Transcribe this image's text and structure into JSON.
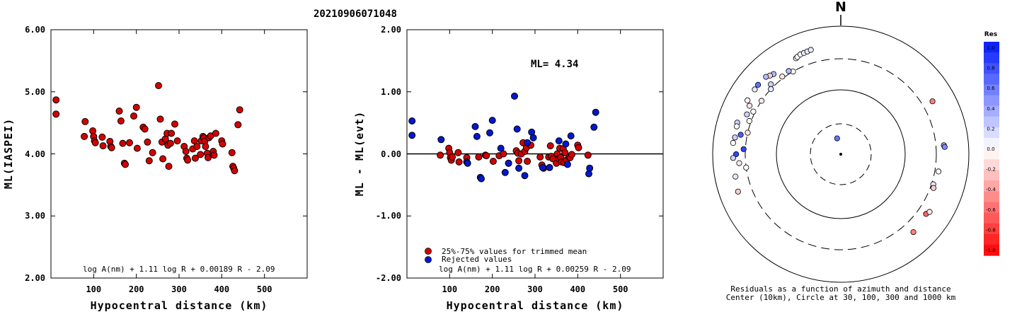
{
  "title": "20210906071048",
  "chart_data": [
    {
      "type": "scatter",
      "ylabel": "ML(IASPEI)",
      "xlabel": "Hypocentral distance (km)",
      "xlim": [
        0,
        600
      ],
      "ylim": [
        2.0,
        6.0
      ],
      "xticks": [
        "100",
        "200",
        "300",
        "400",
        "500"
      ],
      "yticks": [
        "2.00",
        "3.00",
        "4.00",
        "5.00",
        "6.00"
      ],
      "formula": "log A(nm) + 1.11 log R + 0.00189 R - 2.09",
      "points": [
        [
          12,
          4.87
        ],
        [
          12,
          4.64
        ],
        [
          80,
          4.52
        ],
        [
          78,
          4.28
        ],
        [
          98,
          4.37
        ],
        [
          100,
          4.28
        ],
        [
          102,
          4.21
        ],
        [
          104,
          4.18
        ],
        [
          120,
          4.27
        ],
        [
          122,
          4.13
        ],
        [
          138,
          4.2
        ],
        [
          140,
          4.12
        ],
        [
          142,
          4.1
        ],
        [
          160,
          4.69
        ],
        [
          164,
          4.53
        ],
        [
          168,
          4.17
        ],
        [
          172,
          3.85
        ],
        [
          174,
          3.83
        ],
        [
          184,
          4.18
        ],
        [
          194,
          4.61
        ],
        [
          200,
          4.75
        ],
        [
          202,
          4.09
        ],
        [
          216,
          4.43
        ],
        [
          220,
          4.4
        ],
        [
          226,
          4.19
        ],
        [
          230,
          3.89
        ],
        [
          238,
          4.02
        ],
        [
          252,
          5.1
        ],
        [
          256,
          4.56
        ],
        [
          260,
          4.19
        ],
        [
          262,
          3.92
        ],
        [
          268,
          4.24
        ],
        [
          272,
          4.33
        ],
        [
          274,
          4.14
        ],
        [
          276,
          3.8
        ],
        [
          280,
          4.17
        ],
        [
          282,
          4.33
        ],
        [
          290,
          4.48
        ],
        [
          296,
          4.21
        ],
        [
          312,
          4.12
        ],
        [
          316,
          4.04
        ],
        [
          318,
          3.93
        ],
        [
          320,
          3.9
        ],
        [
          332,
          4.08
        ],
        [
          336,
          4.21
        ],
        [
          338,
          3.93
        ],
        [
          342,
          4.12
        ],
        [
          350,
          3.99
        ],
        [
          352,
          4.21
        ],
        [
          356,
          4.28
        ],
        [
          358,
          4.26
        ],
        [
          360,
          4.2
        ],
        [
          362,
          4.12
        ],
        [
          366,
          4.01
        ],
        [
          368,
          3.94
        ],
        [
          370,
          4.26
        ],
        [
          374,
          4.29
        ],
        [
          380,
          4.04
        ],
        [
          382,
          3.98
        ],
        [
          386,
          4.33
        ],
        [
          400,
          4.21
        ],
        [
          402,
          4.16
        ],
        [
          424,
          4.02
        ],
        [
          426,
          3.8
        ],
        [
          428,
          3.77
        ],
        [
          430,
          3.73
        ],
        [
          438,
          4.47
        ],
        [
          442,
          4.71
        ]
      ]
    },
    {
      "type": "scatter",
      "ylabel": "ML - ML(evt)",
      "xlabel": "Hypocentral distance (km)",
      "xlim": [
        0,
        600
      ],
      "ylim": [
        -2.0,
        2.0
      ],
      "xticks": [
        "100",
        "200",
        "300",
        "400",
        "500"
      ],
      "yticks": [
        "-2.00",
        "-1.00",
        "0.00",
        "1.00",
        "2.00"
      ],
      "annotation": "ML= 4.34",
      "formula": "log A(nm) + 1.11 log R + 0.00259 R - 2.09",
      "legend": [
        "25%-75% values for trimmed mean",
        "Rejected values"
      ],
      "series": [
        {
          "name": "25%-75% values for trimmed mean",
          "color": "#d40000",
          "points": [
            [
              78,
              -0.02
            ],
            [
              98,
              0.09
            ],
            [
              100,
              0.02
            ],
            [
              102,
              -0.06
            ],
            [
              104,
              -0.1
            ],
            [
              106,
              -0.05
            ],
            [
              120,
              0.02
            ],
            [
              122,
              -0.13
            ],
            [
              140,
              -0.06
            ],
            [
              168,
              -0.05
            ],
            [
              184,
              -0.02
            ],
            [
              186,
              -0.03
            ],
            [
              202,
              -0.12
            ],
            [
              216,
              -0.03
            ],
            [
              226,
              0.0
            ],
            [
              238,
              -0.15
            ],
            [
              256,
              0.05
            ],
            [
              260,
              0.01
            ],
            [
              262,
              -0.11
            ],
            [
              268,
              0.0
            ],
            [
              272,
              0.18
            ],
            [
              276,
              0.04
            ],
            [
              280,
              0.1
            ],
            [
              282,
              -0.12
            ],
            [
              290,
              0.14
            ],
            [
              312,
              -0.05
            ],
            [
              316,
              -0.18
            ],
            [
              320,
              -0.23
            ],
            [
              332,
              -0.05
            ],
            [
              336,
              0.13
            ],
            [
              338,
              -0.04
            ],
            [
              342,
              -0.08
            ],
            [
              350,
              -0.15
            ],
            [
              352,
              0.0
            ],
            [
              356,
              -0.08
            ],
            [
              358,
              0.09
            ],
            [
              360,
              -0.06
            ],
            [
              362,
              -0.13
            ],
            [
              366,
              0.08
            ],
            [
              368,
              -0.14
            ],
            [
              370,
              0.02
            ],
            [
              374,
              -0.1
            ],
            [
              380,
              -0.05
            ],
            [
              382,
              -0.06
            ],
            [
              386,
              -0.01
            ],
            [
              400,
              0.14
            ],
            [
              402,
              0.1
            ],
            [
              424,
              -0.02
            ]
          ]
        },
        {
          "name": "Rejected values",
          "color": "#0018d0",
          "points": [
            [
              12,
              0.53
            ],
            [
              12,
              0.3
            ],
            [
              80,
              0.23
            ],
            [
              140,
              -0.13
            ],
            [
              142,
              -0.15
            ],
            [
              160,
              0.44
            ],
            [
              164,
              0.28
            ],
            [
              172,
              -0.38
            ],
            [
              174,
              -0.4
            ],
            [
              194,
              0.34
            ],
            [
              200,
              0.54
            ],
            [
              220,
              0.09
            ],
            [
              230,
              -0.3
            ],
            [
              238,
              -0.15
            ],
            [
              252,
              0.93
            ],
            [
              258,
              0.4
            ],
            [
              262,
              -0.23
            ],
            [
              276,
              -0.35
            ],
            [
              282,
              0.18
            ],
            [
              292,
              0.35
            ],
            [
              296,
              0.26
            ],
            [
              318,
              -0.22
            ],
            [
              334,
              -0.22
            ],
            [
              356,
              0.21
            ],
            [
              372,
              0.16
            ],
            [
              376,
              -0.17
            ],
            [
              384,
              0.29
            ],
            [
              426,
              -0.32
            ],
            [
              428,
              -0.23
            ],
            [
              438,
              0.43
            ],
            [
              442,
              0.67
            ]
          ]
        }
      ]
    },
    {
      "type": "polar-scatter",
      "north_label": "N",
      "caption": [
        "Residuals as a function of azimuth and distance",
        "Center (10km), Circle at 30, 100, 300 and 1000 km"
      ],
      "colorbar": {
        "title": "Res",
        "ticks": [
          "1.0",
          "0.8",
          "0.6",
          "0.4",
          "0.2",
          "0.0",
          "-0.2",
          "-0.4",
          "-0.6",
          "-0.8",
          "-1.0"
        ],
        "range": [
          -1.0,
          1.0
        ],
        "high_color": "#0018ff",
        "low_color": "#ff0000"
      },
      "points": [
        {
          "az": 347,
          "dist": 18,
          "res": 0.6
        },
        {
          "az": 335,
          "dist": 440,
          "res": 0.1
        },
        {
          "az": 336,
          "dist": 452,
          "res": 0.0
        },
        {
          "az": 338,
          "dist": 470,
          "res": 0.0
        },
        {
          "az": 340,
          "dist": 472,
          "res": 0.1
        },
        {
          "az": 342,
          "dist": 478,
          "res": 0.1
        },
        {
          "az": 344,
          "dist": 486,
          "res": 0.1
        },
        {
          "az": 330,
          "dist": 300,
          "res": 0.0
        },
        {
          "az": 328,
          "dist": 330,
          "res": 0.3
        },
        {
          "az": 323,
          "dist": 320,
          "res": -0.1
        },
        {
          "az": 320,
          "dist": 420,
          "res": 0.3
        },
        {
          "az": 318,
          "dist": 440,
          "res": -0.2
        },
        {
          "az": 316,
          "dist": 470,
          "res": 0.3
        },
        {
          "az": 315,
          "dist": 340,
          "res": 0.2
        },
        {
          "az": 313,
          "dist": 300,
          "res": 0.1
        },
        {
          "az": 310,
          "dist": 475,
          "res": 0.6
        },
        {
          "az": 307,
          "dist": 470,
          "res": 0.1
        },
        {
          "az": 304,
          "dist": 300,
          "res": -0.1
        },
        {
          "az": 300,
          "dist": 470,
          "res": 0.0
        },
        {
          "az": 298,
          "dist": 400,
          "res": -0.1
        },
        {
          "az": 296,
          "dist": 320,
          "res": 0.0
        },
        {
          "az": 293,
          "dist": 380,
          "res": 0.2
        },
        {
          "az": 290,
          "dist": 320,
          "res": 0.0
        },
        {
          "az": 287,
          "dist": 480,
          "res": 0.2
        },
        {
          "az": 285,
          "dist": 470,
          "res": 0.0
        },
        {
          "az": 283,
          "dist": 300,
          "res": -0.1
        },
        {
          "az": 281,
          "dist": 380,
          "res": 0.7
        },
        {
          "az": 279,
          "dist": 460,
          "res": 0.2
        },
        {
          "az": 276,
          "dist": 480,
          "res": 0.0
        },
        {
          "az": 273,
          "dist": 320,
          "res": 0.8
        },
        {
          "az": 270,
          "dist": 420,
          "res": 0.8
        },
        {
          "az": 268,
          "dist": 470,
          "res": 0.2
        },
        {
          "az": 265,
          "dist": 380,
          "res": -0.1
        },
        {
          "az": 262,
          "dist": 300,
          "res": 0.0
        },
        {
          "az": 258,
          "dist": 470,
          "res": 0.1
        },
        {
          "az": 250,
          "dist": 500,
          "res": -0.2
        },
        {
          "az": 60,
          "dist": 440,
          "res": -0.5
        },
        {
          "az": 85,
          "dist": 402,
          "res": 0.4
        },
        {
          "az": 86,
          "dist": 412,
          "res": 0.5
        },
        {
          "az": 100,
          "dist": 344,
          "res": 0.0
        },
        {
          "az": 108,
          "dist": 320,
          "res": 0.1
        },
        {
          "az": 110,
          "dist": 338,
          "res": -0.2
        },
        {
          "az": 125,
          "dist": 412,
          "res": -0.6
        },
        {
          "az": 123,
          "dist": 440,
          "res": -0.1
        },
        {
          "az": 137,
          "dist": 450,
          "res": -0.5
        }
      ]
    }
  ]
}
